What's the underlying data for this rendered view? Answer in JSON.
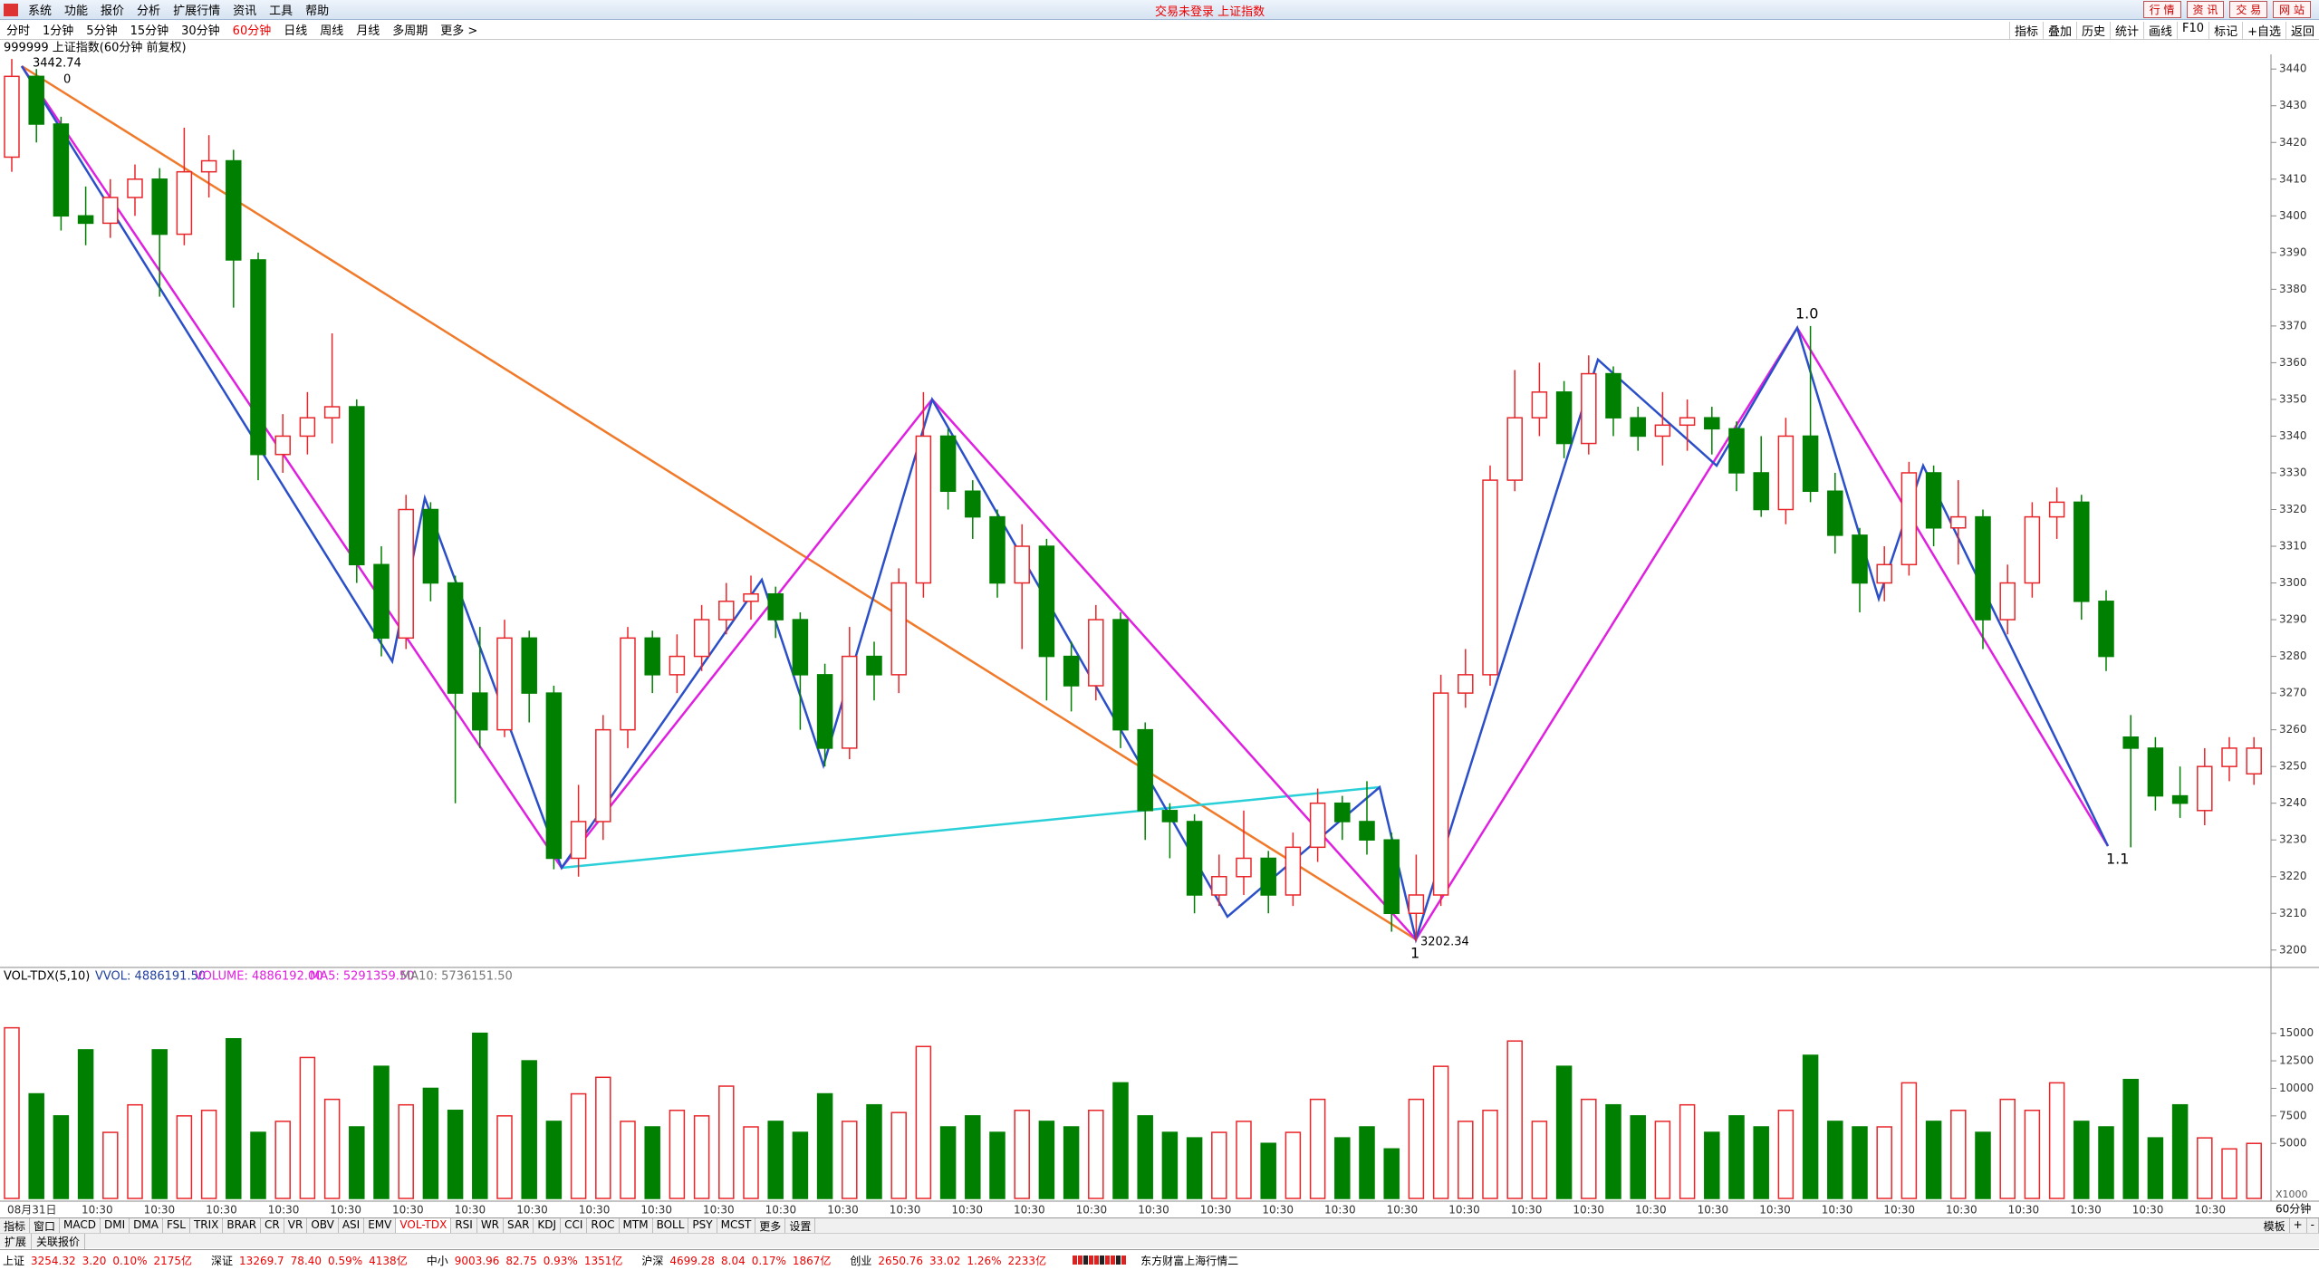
{
  "app": {
    "menu": [
      "系统",
      "功能",
      "报价",
      "分析",
      "扩展行情",
      "资讯",
      "工具",
      "帮助"
    ],
    "center_title": "交易未登录 上证指数",
    "right_buttons": [
      "行 情",
      "资 讯",
      "交 易",
      "网 站"
    ],
    "periods": [
      "分时",
      "1分钟",
      "5分钟",
      "15分钟",
      "30分钟",
      "60分钟",
      "日线",
      "周线",
      "月线",
      "多周期",
      "更多 >"
    ],
    "active_period_index": 5,
    "toolbar_right": [
      "指标",
      "叠加",
      "历史",
      "统计",
      "画线",
      "F10",
      "标记",
      "+自选",
      "返回"
    ],
    "chart_header": "999999 上证指数(60分钟 前复权)",
    "volume_header": {
      "name": "VOL-TDX(5,10)",
      "vvol": "VVOL: 4886191.50",
      "volume": "VOLUME: 4886192.00",
      "ma5": "MA5: 5291359.50",
      "ma10": "MA10: 5736151.50"
    },
    "volume_unit": "X1000",
    "period_tag": "60分钟",
    "tabs": [
      "指标",
      "窗口",
      "MACD",
      "DMI",
      "DMA",
      "FSL",
      "TRIX",
      "BRAR",
      "CR",
      "VR",
      "OBV",
      "ASI",
      "EMV",
      "VOL-TDX",
      "RSI",
      "WR",
      "SAR",
      "KDJ",
      "CCI",
      "ROC",
      "MTM",
      "BOLL",
      "PSY",
      "MCST",
      "更多",
      "设置"
    ],
    "active_tab_index": 13,
    "tabs_right": [
      "模板",
      "+",
      "-"
    ],
    "sub_tabs": [
      "扩展",
      "关联报价"
    ],
    "status": [
      {
        "name": "上证",
        "price": "3254.32",
        "change": "3.20",
        "pct": "0.10%",
        "amount": "2175亿"
      },
      {
        "name": "深证",
        "price": "13269.7",
        "change": "78.40",
        "pct": "0.59%",
        "amount": "4138亿"
      },
      {
        "name": "中小",
        "price": "9003.96",
        "change": "82.75",
        "pct": "0.93%",
        "amount": "1351亿"
      },
      {
        "name": "沪深",
        "price": "4699.28",
        "change": "8.04",
        "pct": "0.17%",
        "amount": "1867亿"
      },
      {
        "name": "创业",
        "price": "2650.76",
        "change": "33.02",
        "pct": "1.26%",
        "amount": "2233亿"
      }
    ],
    "server": "东方财富上海行情二"
  },
  "chart_data": {
    "type": "candlestick",
    "up_color": "#e8262a",
    "down_color": "#008000",
    "open": [
      3416,
      3438,
      3425,
      3400,
      3398,
      3405,
      3410,
      3395,
      3412,
      3415,
      3388,
      3335,
      3340,
      3345,
      3348,
      3305,
      3285,
      3320,
      3300,
      3270,
      3260,
      3285,
      3270,
      3225,
      3235,
      3260,
      3285,
      3275,
      3280,
      3290,
      3295,
      3297,
      3290,
      3275,
      3255,
      3280,
      3275,
      3300,
      3340,
      3325,
      3318,
      3300,
      3310,
      3280,
      3272,
      3290,
      3260,
      3238,
      3235,
      3215,
      3220,
      3225,
      3215,
      3228,
      3240,
      3235,
      3230,
      3210,
      3215,
      3270,
      3275,
      3328,
      3345,
      3352,
      3338,
      3357,
      3345,
      3340,
      3343,
      3345,
      3342,
      3330,
      3320,
      3340,
      3325,
      3313,
      3300,
      3305,
      3330,
      3315,
      3318,
      3290,
      3300,
      3318,
      3322,
      3295,
      3258,
      3255,
      3242,
      3238,
      3250,
      3248
    ],
    "high": [
      3442.74,
      3440,
      3427,
      3408,
      3410,
      3414,
      3413,
      3424,
      3422,
      3418,
      3390,
      3346,
      3352,
      3368,
      3350,
      3310,
      3324,
      3322,
      3302,
      3288,
      3290,
      3287,
      3272,
      3245,
      3264,
      3288,
      3287,
      3286,
      3294,
      3300,
      3302,
      3299,
      3292,
      3278,
      3288,
      3284,
      3304,
      3352,
      3342,
      3328,
      3320,
      3316,
      3312,
      3284,
      3294,
      3292,
      3262,
      3240,
      3237,
      3226,
      3238,
      3227,
      3232,
      3244,
      3242,
      3246,
      3232,
      3226,
      3275,
      3282,
      3332,
      3358,
      3360,
      3355,
      3362,
      3359,
      3348,
      3352,
      3350,
      3348,
      3344,
      3340,
      3345,
      3370,
      3330,
      3315,
      3310,
      3333,
      3332,
      3328,
      3320,
      3305,
      3322,
      3326,
      3324,
      3298,
      3264,
      3258,
      3250,
      3255,
      3258,
      3258
    ],
    "low": [
      3412,
      3420,
      3396,
      3392,
      3394,
      3400,
      3378,
      3392,
      3405,
      3375,
      3328,
      3330,
      3335,
      3338,
      3300,
      3280,
      3282,
      3295,
      3240,
      3255,
      3258,
      3262,
      3222,
      3220,
      3230,
      3255,
      3270,
      3270,
      3276,
      3286,
      3290,
      3285,
      3260,
      3250,
      3252,
      3268,
      3270,
      3296,
      3320,
      3312,
      3296,
      3282,
      3268,
      3265,
      3268,
      3255,
      3230,
      3225,
      3210,
      3212,
      3215,
      3210,
      3212,
      3224,
      3230,
      3226,
      3205,
      3202.34,
      3212,
      3266,
      3272,
      3325,
      3340,
      3334,
      3335,
      3340,
      3336,
      3332,
      3336,
      3335,
      3325,
      3318,
      3316,
      3322,
      3308,
      3292,
      3295,
      3302,
      3310,
      3305,
      3282,
      3286,
      3296,
      3312,
      3290,
      3276,
      3228,
      3238,
      3236,
      3234,
      3246,
      3245
    ],
    "close": [
      3438,
      3425,
      3400,
      3398,
      3405,
      3410,
      3395,
      3412,
      3415,
      3388,
      3335,
      3340,
      3345,
      3348,
      3305,
      3285,
      3320,
      3300,
      3270,
      3260,
      3285,
      3270,
      3225,
      3235,
      3260,
      3285,
      3275,
      3280,
      3290,
      3295,
      3297,
      3290,
      3275,
      3255,
      3280,
      3275,
      3300,
      3340,
      3325,
      3318,
      3300,
      3310,
      3280,
      3272,
      3290,
      3260,
      3238,
      3235,
      3215,
      3220,
      3225,
      3215,
      3228,
      3240,
      3235,
      3230,
      3210,
      3215,
      3270,
      3275,
      3328,
      3345,
      3352,
      3338,
      3357,
      3345,
      3340,
      3343,
      3345,
      3342,
      3330,
      3320,
      3340,
      3325,
      3313,
      3300,
      3305,
      3330,
      3315,
      3318,
      3290,
      3300,
      3318,
      3322,
      3295,
      3280,
      3255,
      3242,
      3240,
      3250,
      3255,
      3255
    ],
    "volume": [
      15500,
      9500,
      7500,
      13500,
      6000,
      8500,
      13500,
      7500,
      8000,
      14500,
      6000,
      7000,
      12800,
      9000,
      6500,
      12000,
      8500,
      10000,
      8000,
      15000,
      7500,
      12500,
      7000,
      9500,
      11000,
      7000,
      6500,
      8000,
      7500,
      10200,
      6500,
      7000,
      6000,
      9500,
      7000,
      8500,
      7800,
      13800,
      6500,
      7500,
      6000,
      8000,
      7000,
      6500,
      8000,
      10500,
      7500,
      6000,
      5500,
      6000,
      7000,
      5000,
      6000,
      9000,
      5500,
      6500,
      4500,
      9000,
      12000,
      7000,
      8000,
      14300,
      7000,
      12000,
      9000,
      8500,
      7500,
      7000,
      8500,
      6000,
      7500,
      6500,
      8000,
      13000,
      7000,
      6500,
      6500,
      10500,
      7000,
      8000,
      6000,
      9000,
      8000,
      10500,
      7000,
      6500,
      10800,
      5500,
      8500,
      5500,
      4500,
      5000
    ],
    "ylim": [
      3196,
      3444
    ],
    "yticks": [
      3200,
      3210,
      3220,
      3230,
      3240,
      3250,
      3260,
      3270,
      3280,
      3290,
      3300,
      3310,
      3320,
      3330,
      3340,
      3350,
      3360,
      3370,
      3380,
      3390,
      3400,
      3410,
      3420,
      3430,
      3440
    ],
    "vol_ylim": [
      0,
      19500
    ],
    "vol_ticks": [
      5000,
      7500,
      10000,
      12500,
      15000
    ],
    "time_labels": [
      "08月31日",
      "10:30",
      "10:30",
      "10:30",
      "10:30",
      "10:30",
      "10:30",
      "10:30",
      "10:30",
      "10:30",
      "10:30",
      "10:30",
      "10:30",
      "10:30",
      "10:30",
      "10:30",
      "10:30",
      "10:30",
      "10:30",
      "10:30",
      "10:30",
      "10:30",
      "10:30",
      "10:30",
      "10:30",
      "10:30",
      "10:30",
      "10:30",
      "10:30",
      "10:30",
      "10:30",
      "10:30",
      "10:30",
      "10:30",
      "10:30",
      "10:30"
    ],
    "annotations": {
      "high_label": "3442.74",
      "low_label": "3202.34",
      "fib0": "0",
      "fib10": "1.0",
      "fib11": "1.1",
      "fib1": "1"
    }
  }
}
